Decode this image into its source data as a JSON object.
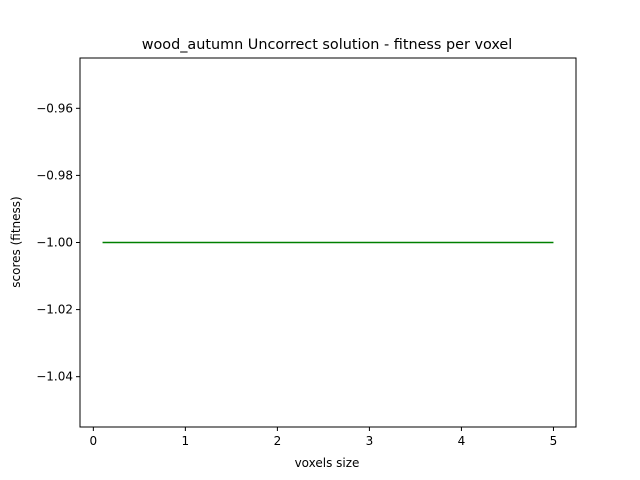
{
  "chart_data": {
    "type": "line",
    "title": "wood_autumn Uncorrect solution - fitness per voxel",
    "xlabel": "voxels size",
    "ylabel": "scores (fitness)",
    "xlim": [
      -0.145,
      5.245
    ],
    "ylim": [
      -1.055,
      -0.945
    ],
    "x_ticks": [
      0,
      1,
      2,
      3,
      4,
      5
    ],
    "x_tick_labels": [
      "0",
      "1",
      "2",
      "3",
      "4",
      "5"
    ],
    "y_ticks": [
      -0.96,
      -0.98,
      -1.0,
      -1.02,
      -1.04
    ],
    "y_tick_labels": [
      "−0.96",
      "−0.98",
      "−1.00",
      "−1.02",
      "−1.04"
    ],
    "grid": false,
    "series": [
      {
        "color": "#008000",
        "x": [
          0.1,
          5.0
        ],
        "y": [
          -1.0,
          -1.0
        ]
      }
    ]
  }
}
